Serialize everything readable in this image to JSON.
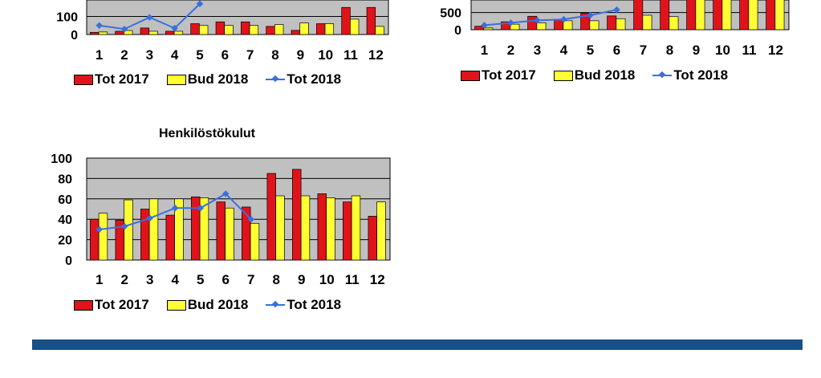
{
  "chart_data": [
    {
      "type": "bar",
      "title": "",
      "categories": [
        "1",
        "2",
        "3",
        "4",
        "5",
        "6",
        "7",
        "8",
        "9",
        "10",
        "11",
        "12"
      ],
      "yticks": [
        "0",
        "100"
      ],
      "ylim": [
        0,
        280
      ],
      "legend_position": "bottom",
      "grid": true,
      "series": [
        {
          "name": "Tot 2017",
          "kind": "bar",
          "color": "#e0131b",
          "values": [
            12,
            18,
            36,
            18,
            60,
            70,
            70,
            45,
            23,
            60,
            150,
            150
          ]
        },
        {
          "name": "Bud 2018",
          "kind": "bar",
          "color": "#ffff33",
          "values": [
            14,
            22,
            18,
            18,
            50,
            50,
            50,
            55,
            64,
            60,
            85,
            45
          ]
        },
        {
          "name": "Tot 2018",
          "kind": "line",
          "color": "#3a6fe0",
          "values": [
            50,
            30,
            95,
            35,
            170,
            null,
            null,
            null,
            null,
            null,
            null,
            null
          ]
        }
      ]
    },
    {
      "type": "bar",
      "title": "",
      "categories": [
        "1",
        "2",
        "3",
        "4",
        "5",
        "6",
        "7",
        "8",
        "9",
        "10",
        "11",
        "12"
      ],
      "yticks": [
        "0",
        "500"
      ],
      "ylim": [
        0,
        1330
      ],
      "legend_position": "bottom",
      "grid": true,
      "series": [
        {
          "name": "Tot 2017",
          "kind": "bar",
          "color": "#e0131b",
          "values": [
            100,
            230,
            390,
            300,
            480,
            400,
            1300,
            1300,
            1300,
            1300,
            1300,
            1300
          ]
        },
        {
          "name": "Bud 2018",
          "kind": "bar",
          "color": "#ffff33",
          "values": [
            50,
            160,
            200,
            260,
            260,
            320,
            420,
            380,
            1300,
            1300,
            1300,
            1300
          ]
        },
        {
          "name": "Tot 2018",
          "kind": "line",
          "color": "#3a6fe0",
          "values": [
            130,
            200,
            270,
            300,
            420,
            580,
            null,
            null,
            null,
            null,
            null,
            null
          ]
        }
      ]
    },
    {
      "type": "bar",
      "title": "Henkilöstökulut",
      "categories": [
        "1",
        "2",
        "3",
        "4",
        "5",
        "6",
        "7",
        "8",
        "9",
        "10",
        "11",
        "12"
      ],
      "yticks": [
        "0",
        "20",
        "40",
        "60",
        "80",
        "100"
      ],
      "ylim": [
        0,
        100
      ],
      "legend_position": "bottom",
      "grid": true,
      "series": [
        {
          "name": "Tot 2017",
          "kind": "bar",
          "color": "#e0131b",
          "values": [
            40,
            39,
            50,
            44,
            62,
            57,
            52,
            85,
            89,
            65,
            57,
            43
          ]
        },
        {
          "name": "Bud 2018",
          "kind": "bar",
          "color": "#ffff33",
          "values": [
            46,
            59,
            60,
            60,
            61,
            51,
            36,
            63,
            63,
            61,
            63,
            57
          ]
        },
        {
          "name": "Tot 2018",
          "kind": "line",
          "color": "#3a6fe0",
          "values": [
            30,
            33,
            41,
            51,
            51,
            65,
            40,
            null,
            null,
            null,
            null,
            null
          ]
        }
      ]
    }
  ]
}
